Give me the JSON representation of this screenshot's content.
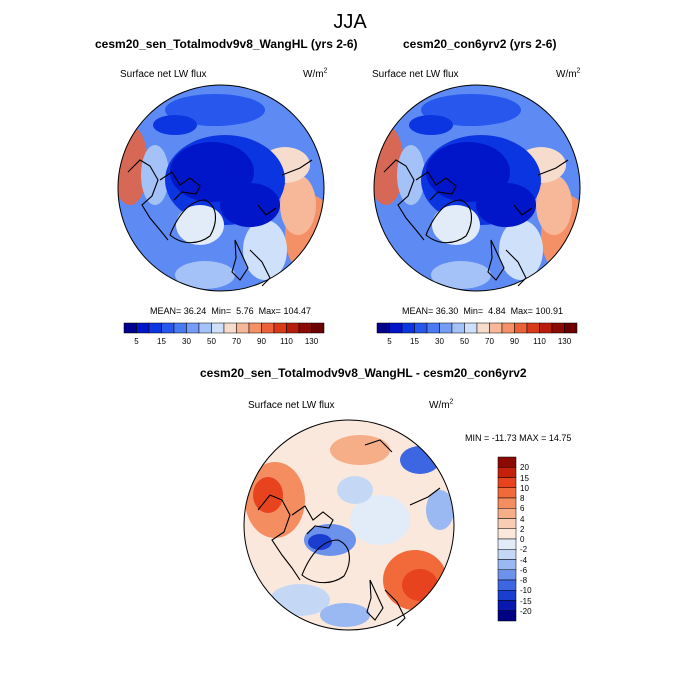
{
  "main_title": "JJA",
  "panels": [
    {
      "title": "cesm20_sen_Totalmodv9v8_WangHL (yrs 2-6)",
      "variable": "Surface net LW flux",
      "units_base": "W/m",
      "units_exp": "2",
      "stats": {
        "mean_label": "MEAN=",
        "mean": "36.24",
        "min_label": "Min=",
        "min": "5.76",
        "max_label": "Max=",
        "max": "104.47"
      },
      "colorbar_labels": [
        "5",
        "15",
        "30",
        "50",
        "70",
        "90",
        "110",
        "130"
      ],
      "colorbar_colors": [
        "#00008c",
        "#0016c8",
        "#0a35e0",
        "#2857ee",
        "#4a7af2",
        "#759df5",
        "#a4c2f8",
        "#cfe0fb",
        "#f6dccd",
        "#f7b89a",
        "#f49066",
        "#ec6238",
        "#d83a1a",
        "#b81c0a",
        "#8c0a04",
        "#6a0000"
      ]
    },
    {
      "title": "cesm20_con6yrv2 (yrs 2-6)",
      "variable": "Surface net LW flux",
      "units_base": "W/m",
      "units_exp": "2",
      "stats": {
        "mean_label": "MEAN=",
        "mean": "36.30",
        "min_label": "Min=",
        "min": "4.84",
        "max_label": "Max=",
        "max": "100.91"
      },
      "colorbar_labels": [
        "5",
        "15",
        "30",
        "50",
        "70",
        "90",
        "110",
        "130"
      ],
      "colorbar_colors": [
        "#00008c",
        "#0016c8",
        "#0a35e0",
        "#2857ee",
        "#4a7af2",
        "#759df5",
        "#a4c2f8",
        "#cfe0fb",
        "#f6dccd",
        "#f7b89a",
        "#f49066",
        "#ec6238",
        "#d83a1a",
        "#b81c0a",
        "#8c0a04",
        "#6a0000"
      ]
    }
  ],
  "difference": {
    "title": "cesm20_sen_Totalmodv9v8_WangHL - cesm20_con6yrv2",
    "variable": "Surface net LW flux",
    "units_base": "W/m",
    "units_exp": "2",
    "range_text": "MIN = -11.73 MAX =  14.75",
    "colorbar_labels": [
      "20",
      "15",
      "10",
      "8",
      "6",
      "4",
      "2",
      "0",
      "-2",
      "-4",
      "-6",
      "-8",
      "-10",
      "-15",
      "-20"
    ],
    "colorbar_colors": [
      "#8c0a04",
      "#c4200c",
      "#e6431e",
      "#f26a3a",
      "#f48d60",
      "#f6ae88",
      "#f8cdb4",
      "#fbe8dc",
      "#e2ecf8",
      "#c4d8f6",
      "#9ab8f2",
      "#6c92ec",
      "#3c66e2",
      "#1a3ed0",
      "#0818b0",
      "#000082"
    ]
  },
  "chart_data": {
    "type": "heatmap",
    "projection": "north polar stereographic",
    "season": "JJA",
    "maps": [
      {
        "name": "cesm20_sen_Totalmodv9v8_WangHL (yrs 2-6)",
        "variable": "Surface net LW flux",
        "units": "W/m^2",
        "mean": 36.24,
        "min": 5.76,
        "max": 104.47,
        "contour_levels": [
          5,
          10,
          15,
          20,
          30,
          40,
          50,
          60,
          70,
          80,
          90,
          100,
          110,
          120,
          130
        ]
      },
      {
        "name": "cesm20_con6yrv2 (yrs 2-6)",
        "variable": "Surface net LW flux",
        "units": "W/m^2",
        "mean": 36.3,
        "min": 4.84,
        "max": 100.91,
        "contour_levels": [
          5,
          10,
          15,
          20,
          30,
          40,
          50,
          60,
          70,
          80,
          90,
          100,
          110,
          120,
          130
        ]
      },
      {
        "name": "cesm20_sen_Totalmodv9v8_WangHL - cesm20_con6yrv2",
        "variable": "Surface net LW flux",
        "units": "W/m^2",
        "min": -11.73,
        "max": 14.75,
        "contour_levels": [
          -20,
          -15,
          -10,
          -8,
          -6,
          -4,
          -2,
          0,
          2,
          4,
          6,
          8,
          10,
          15,
          20
        ]
      }
    ]
  }
}
